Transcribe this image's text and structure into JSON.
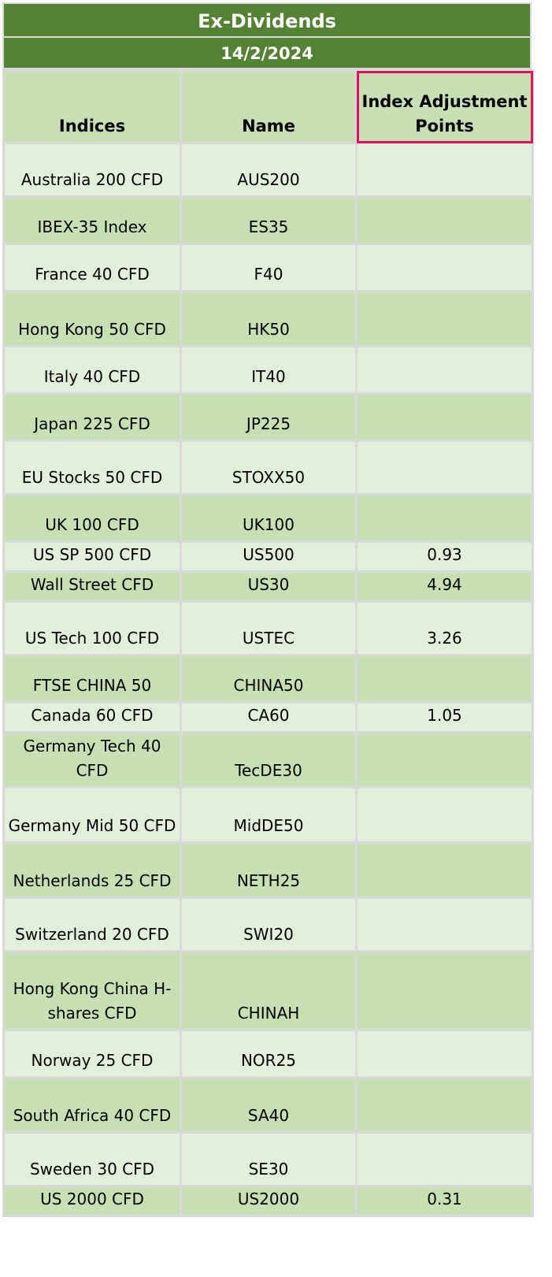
{
  "title": "Ex-Dividends",
  "date": "14/2/2024",
  "columns": [
    "Indices",
    "Name",
    "Index Adjustment Points"
  ],
  "rows": [
    {
      "index": "Australia 200 CFD",
      "name": "AUS200",
      "points": ""
    },
    {
      "index": "IBEX-35 Index",
      "name": "ES35",
      "points": ""
    },
    {
      "index": "France 40 CFD",
      "name": "F40",
      "points": ""
    },
    {
      "index": "Hong Kong 50 CFD",
      "name": "HK50",
      "points": ""
    },
    {
      "index": "Italy 40 CFD",
      "name": "IT40",
      "points": ""
    },
    {
      "index": "Japan 225 CFD",
      "name": "JP225",
      "points": ""
    },
    {
      "index": "EU Stocks 50 CFD",
      "name": "STOXX50",
      "points": ""
    },
    {
      "index": "UK 100 CFD",
      "name": "UK100",
      "points": ""
    },
    {
      "index": "US SP 500 CFD",
      "name": "US500",
      "points": "0.93"
    },
    {
      "index": "Wall Street CFD",
      "name": "US30",
      "points": "4.94"
    },
    {
      "index": "US Tech 100 CFD",
      "name": "USTEC",
      "points": "3.26"
    },
    {
      "index": "FTSE CHINA 50",
      "name": "CHINA50",
      "points": ""
    },
    {
      "index": "Canada 60 CFD",
      "name": "CA60",
      "points": "1.05"
    },
    {
      "index": "Germany Tech 40 CFD",
      "name": "TecDE30",
      "points": ""
    },
    {
      "index": "Germany Mid 50 CFD",
      "name": "MidDE50",
      "points": ""
    },
    {
      "index": "Netherlands 25 CFD",
      "name": "NETH25",
      "points": ""
    },
    {
      "index": "Switzerland 20 CFD",
      "name": "SWI20",
      "points": ""
    },
    {
      "index": "Hong Kong China H-shares CFD",
      "name": "CHINAH",
      "points": ""
    },
    {
      "index": "Norway 25 CFD",
      "name": "NOR25",
      "points": ""
    },
    {
      "index": "South Africa 40 CFD",
      "name": "SA40",
      "points": ""
    },
    {
      "index": "Sweden 30 CFD",
      "name": "SE30",
      "points": ""
    },
    {
      "index": "US 2000 CFD",
      "name": "US2000",
      "points": "0.31"
    }
  ],
  "colors": {
    "banner": "#548235",
    "band_dark": "#c6e0b4",
    "band_light": "#e2efda",
    "selection": "#e0115f"
  }
}
